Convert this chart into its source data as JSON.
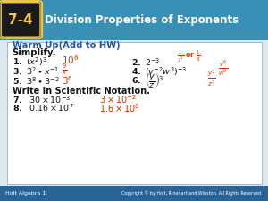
{
  "title_number": "7-4",
  "title_number_bg": "#1a1a1a",
  "title_text": "Division Properties of Exponents",
  "header_bg": "#3a8fb5",
  "header_gradient_end": "#5ab0d0",
  "body_bg": "#dce8f0",
  "card_bg": "#ffffff",
  "card_border": "#aaaaaa",
  "warm_up_color": "#2255aa",
  "answer_color": "#cc3300",
  "footer_bg": "#2a6496",
  "footer_left": "Holt Algebra 1",
  "footer_right": "Copyright © by Holt, Rinehart and Winston. All Rights Reserved.",
  "footer_color": "#ffffff",
  "badge_bg": "#1a1a1a",
  "badge_color": "#f5c842"
}
